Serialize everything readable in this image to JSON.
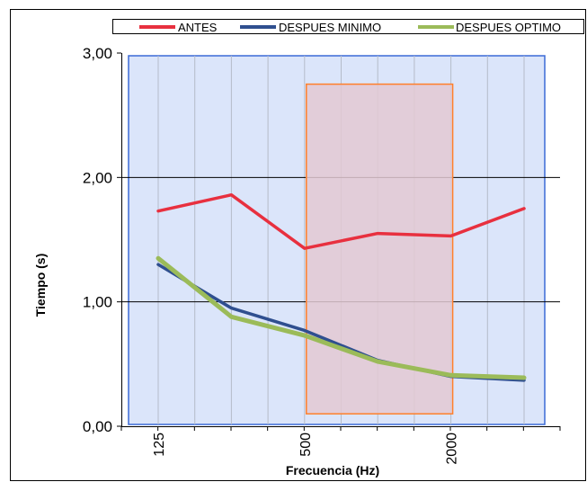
{
  "chart_data": {
    "type": "line",
    "x_ticks": [
      "125",
      "500",
      "2000"
    ],
    "xlabel": "Frecuencia (Hz)",
    "ylabel": "Tiempo (s)",
    "ylim": [
      0,
      3
    ],
    "y_ticks": [
      "0,00",
      "1,00",
      "2,00",
      "3,00"
    ],
    "x": [
      1,
      2,
      3,
      4,
      5,
      6
    ],
    "grid": true,
    "legend_position": "top",
    "background_color": "#dbe5fa",
    "highlight_region": {
      "x_range": [
        3,
        5
      ],
      "y_range": [
        0.1,
        2.75
      ],
      "fill": "#e3c9d2",
      "stroke": "#ff7f2a"
    },
    "series": [
      {
        "name": "ANTES",
        "color": "#e8303f",
        "values": [
          1.73,
          1.86,
          1.43,
          1.55,
          1.53,
          1.75
        ]
      },
      {
        "name": "DESPUES MINIMO",
        "color": "#2f4f8f",
        "values": [
          1.3,
          0.95,
          0.77,
          0.53,
          0.4,
          0.37
        ]
      },
      {
        "name": "DESPUES OPTIMO",
        "color": "#9bbb59",
        "values": [
          1.35,
          0.88,
          0.73,
          0.52,
          0.41,
          0.39
        ]
      }
    ]
  }
}
